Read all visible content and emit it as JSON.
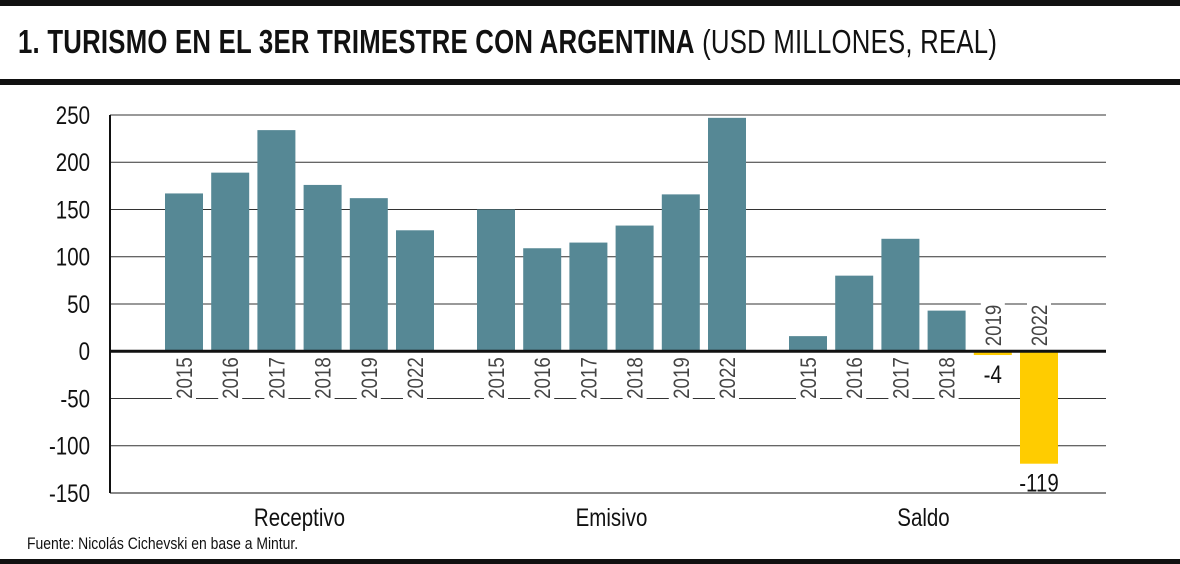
{
  "header": {
    "title_bold": "1. TURISMO EN EL 3ER TRIMESTRE CON ARGENTINA",
    "title_light": "(USD MILLONES, REAL)"
  },
  "footer": {
    "source": "Fuente: Nicolás Cichevski en base a Mintur."
  },
  "chart_data": {
    "type": "bar",
    "title": "1. TURISMO EN EL 3ER TRIMESTRE CON ARGENTINA (USD MILLONES, REAL)",
    "ylim": [
      -150,
      250
    ],
    "yticks": [
      250,
      200,
      150,
      100,
      50,
      0,
      -50,
      -100,
      -150
    ],
    "grid": true,
    "colors": {
      "bar": "#568895",
      "highlight": "#ffcc00",
      "axis": "#111111",
      "grid": "#333333"
    },
    "groups": [
      {
        "name": "Receptivo",
        "years": [
          "2015",
          "2016",
          "2017",
          "2018",
          "2019",
          "2022"
        ],
        "values": [
          167,
          189,
          234,
          176,
          162,
          128
        ]
      },
      {
        "name": "Emisivo",
        "years": [
          "2015",
          "2016",
          "2017",
          "2018",
          "2019",
          "2022"
        ],
        "values": [
          150,
          109,
          115,
          133,
          166,
          247
        ]
      },
      {
        "name": "Saldo",
        "years": [
          "2015",
          "2016",
          "2017",
          "2018",
          "2019",
          "2022"
        ],
        "values": [
          16,
          80,
          119,
          43,
          -4,
          -119
        ],
        "data_labels": [
          "",
          "",
          "",
          "",
          "-4",
          "-119"
        ]
      }
    ]
  }
}
